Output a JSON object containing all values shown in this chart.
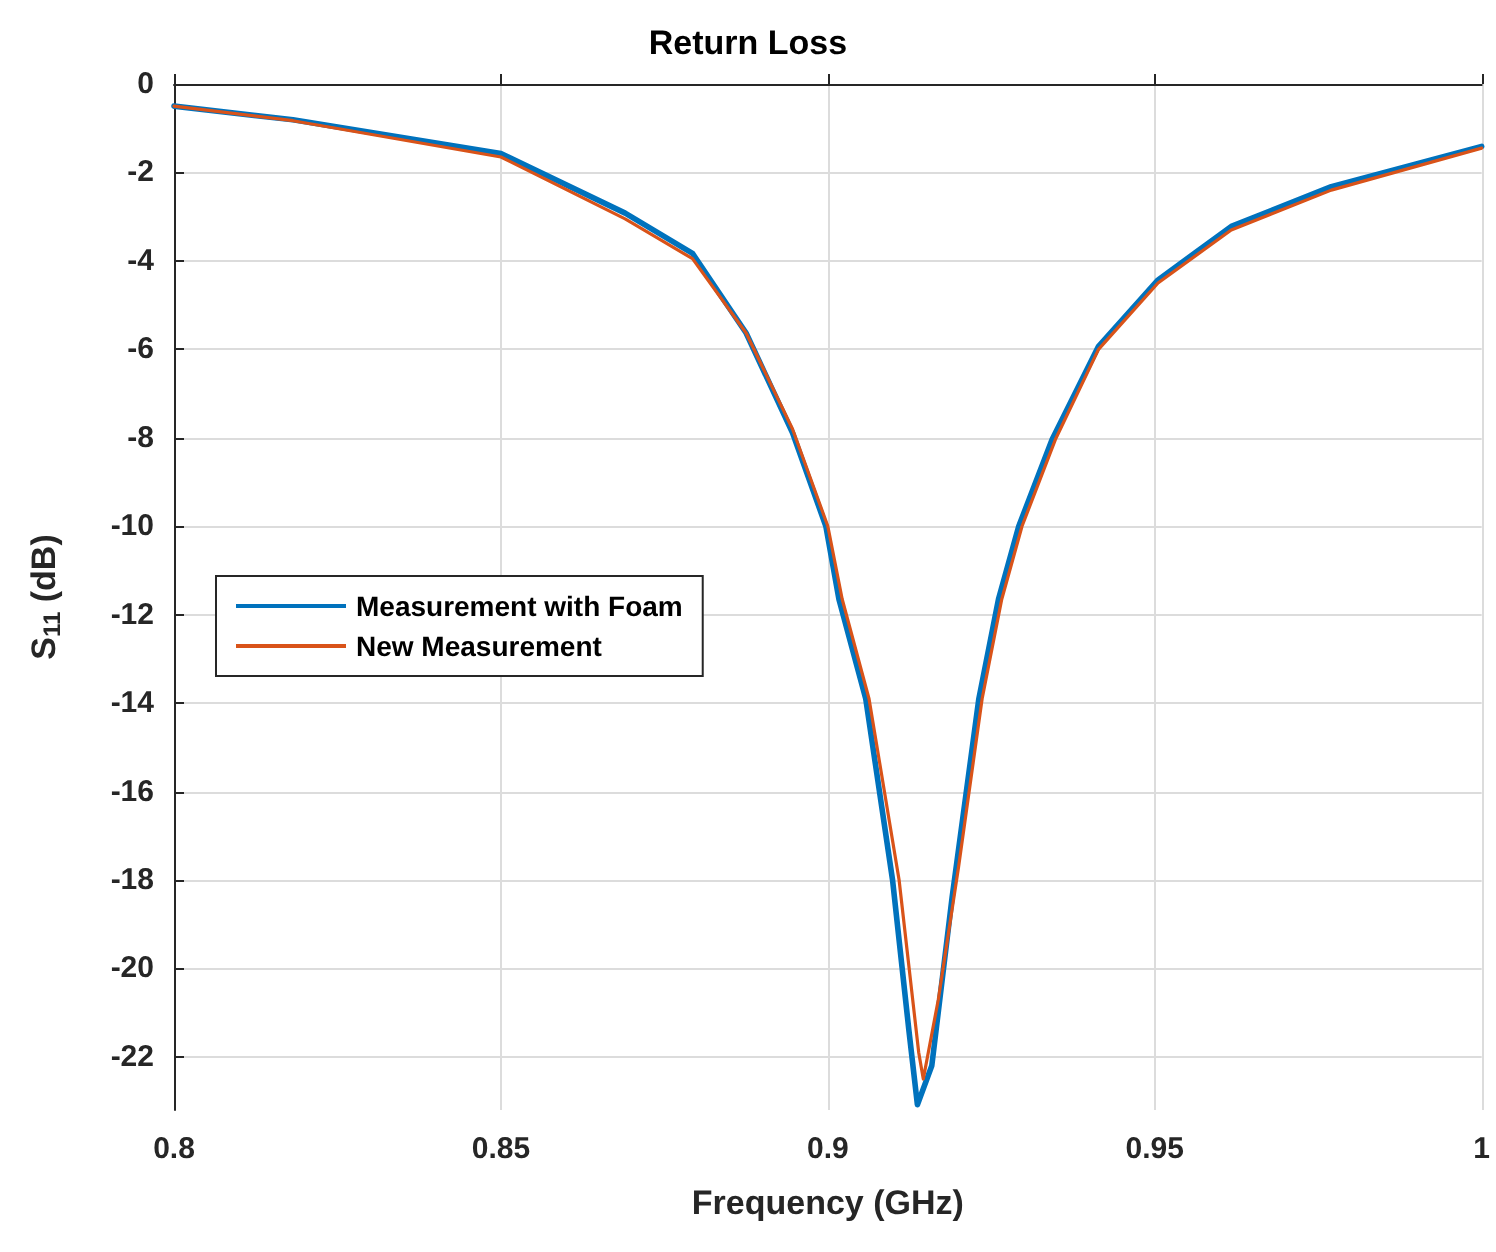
{
  "chart_data": {
    "type": "line",
    "title": "Return Loss",
    "xlabel": "Frequency (GHz)",
    "ylabel": "S$_{11}$ (dB)",
    "xlim": [
      0.8,
      1
    ],
    "xticks": [
      0.8,
      0.85,
      0.9,
      0.95,
      1
    ],
    "ylim": [
      -23.2,
      0
    ],
    "yticks": [
      0,
      -2,
      -4,
      -6,
      -8,
      -10,
      -12,
      -14,
      -16,
      -18,
      -20,
      -22
    ],
    "grid": true,
    "legend": "left",
    "marker": "none",
    "line_style": "solid",
    "series": [
      {
        "name": "Measurement with Foam",
        "color": "#0072bd",
        "x": [
          0.8,
          0.8182,
          0.85,
          0.869,
          0.8793,
          0.8875,
          0.8946,
          0.8997,
          0.9017,
          0.9058,
          0.9099,
          0.9124,
          0.9137,
          0.9159,
          0.919,
          0.9231,
          0.9261,
          0.9292,
          0.9343,
          0.9414,
          0.9505,
          0.9617,
          0.977,
          1.0
        ],
        "values": [
          -0.5,
          -0.81,
          -1.57,
          -2.92,
          -3.83,
          -5.63,
          -7.89,
          -10.0,
          -11.65,
          -13.9,
          -18.0,
          -21.4,
          -23.08,
          -22.2,
          -18.4,
          -13.9,
          -11.65,
          -10.0,
          -8.04,
          -5.93,
          -4.43,
          -3.22,
          -2.32,
          -1.41
        ]
      },
      {
        "name": "New Measurement",
        "color": "#d95319",
        "x": [
          0.8,
          0.8182,
          0.85,
          0.869,
          0.8793,
          0.8875,
          0.8946,
          0.9,
          0.9022,
          0.9063,
          0.9109,
          0.9139,
          0.9146,
          0.9169,
          0.92,
          0.9236,
          0.9266,
          0.9297,
          0.9348,
          0.9414,
          0.9505,
          0.9617,
          0.977,
          1.0
        ],
        "values": [
          -0.5,
          -0.83,
          -1.65,
          -3.05,
          -3.95,
          -5.63,
          -7.8,
          -10.0,
          -11.65,
          -13.9,
          -18.0,
          -21.9,
          -22.5,
          -20.7,
          -17.7,
          -13.9,
          -11.65,
          -10.0,
          -8.04,
          -6.0,
          -4.5,
          -3.3,
          -2.4,
          -1.45
        ]
      }
    ]
  }
}
